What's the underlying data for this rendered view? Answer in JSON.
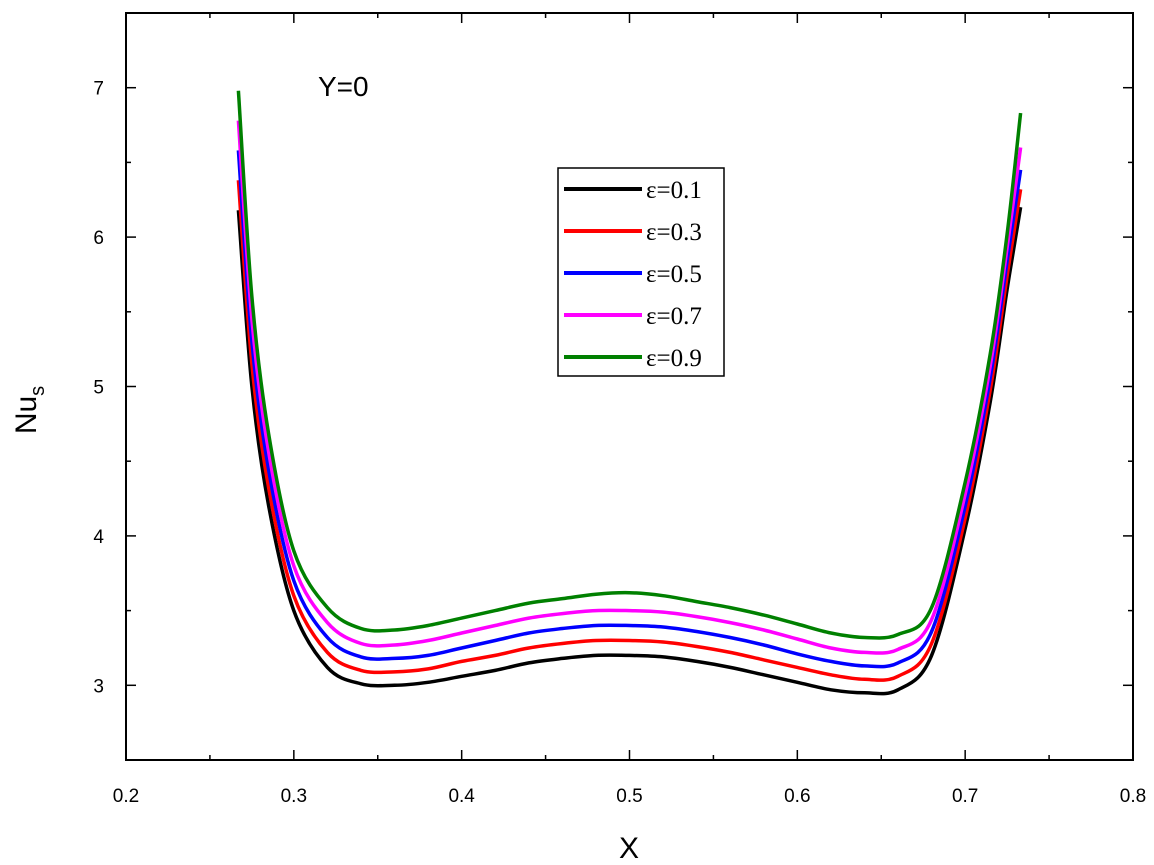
{
  "chart_data": {
    "type": "line",
    "title": "",
    "xlabel": "X",
    "ylabel_main": "Nu",
    "ylabel_sub": "s",
    "annotation": "Y=0",
    "xlim": [
      0.2,
      0.8
    ],
    "ylim": [
      2.5,
      7.5
    ],
    "x_ticks": [
      "0.2",
      "0.3",
      "0.4",
      "0.5",
      "0.6",
      "0.7",
      "0.8"
    ],
    "y_ticks": [
      "3",
      "4",
      "5",
      "6",
      "7"
    ],
    "grid": false,
    "legend_position": "center-top",
    "x": [
      0.267,
      0.275,
      0.285,
      0.3,
      0.32,
      0.34,
      0.36,
      0.38,
      0.4,
      0.42,
      0.44,
      0.46,
      0.48,
      0.5,
      0.52,
      0.54,
      0.56,
      0.58,
      0.6,
      0.62,
      0.64,
      0.66,
      0.68,
      0.7,
      0.715,
      0.725,
      0.733
    ],
    "series": [
      {
        "name": "ε=0.1",
        "color": "#000000",
        "values": [
          6.18,
          5.0,
          4.2,
          3.5,
          3.12,
          3.01,
          3.0,
          3.02,
          3.06,
          3.1,
          3.15,
          3.18,
          3.2,
          3.2,
          3.19,
          3.16,
          3.12,
          3.07,
          3.02,
          2.97,
          2.95,
          2.97,
          3.2,
          4.05,
          4.9,
          5.65,
          6.2
        ]
      },
      {
        "name": "ε=0.3",
        "color": "#ff0000",
        "values": [
          6.38,
          5.15,
          4.32,
          3.6,
          3.22,
          3.1,
          3.09,
          3.11,
          3.16,
          3.2,
          3.25,
          3.28,
          3.3,
          3.3,
          3.29,
          3.26,
          3.22,
          3.17,
          3.12,
          3.07,
          3.04,
          3.06,
          3.28,
          4.12,
          4.98,
          5.74,
          6.32
        ]
      },
      {
        "name": "ε=0.5",
        "color": "#0000ff",
        "values": [
          6.58,
          5.3,
          4.44,
          3.7,
          3.32,
          3.19,
          3.18,
          3.2,
          3.25,
          3.3,
          3.35,
          3.38,
          3.4,
          3.4,
          3.39,
          3.36,
          3.32,
          3.27,
          3.21,
          3.16,
          3.13,
          3.15,
          3.36,
          4.2,
          5.06,
          5.84,
          6.45
        ]
      },
      {
        "name": "ε=0.7",
        "color": "#ff00ff",
        "values": [
          6.78,
          5.45,
          4.56,
          3.8,
          3.42,
          3.28,
          3.27,
          3.3,
          3.35,
          3.4,
          3.45,
          3.48,
          3.5,
          3.5,
          3.49,
          3.46,
          3.42,
          3.37,
          3.31,
          3.25,
          3.22,
          3.24,
          3.44,
          4.28,
          5.14,
          5.93,
          6.6
        ]
      },
      {
        "name": "ε=0.9",
        "color": "#008000",
        "values": [
          6.98,
          5.6,
          4.68,
          3.9,
          3.52,
          3.38,
          3.37,
          3.4,
          3.45,
          3.5,
          3.55,
          3.58,
          3.61,
          3.62,
          3.6,
          3.56,
          3.52,
          3.47,
          3.41,
          3.35,
          3.32,
          3.34,
          3.52,
          4.36,
          5.22,
          6.02,
          6.83
        ]
      }
    ]
  }
}
